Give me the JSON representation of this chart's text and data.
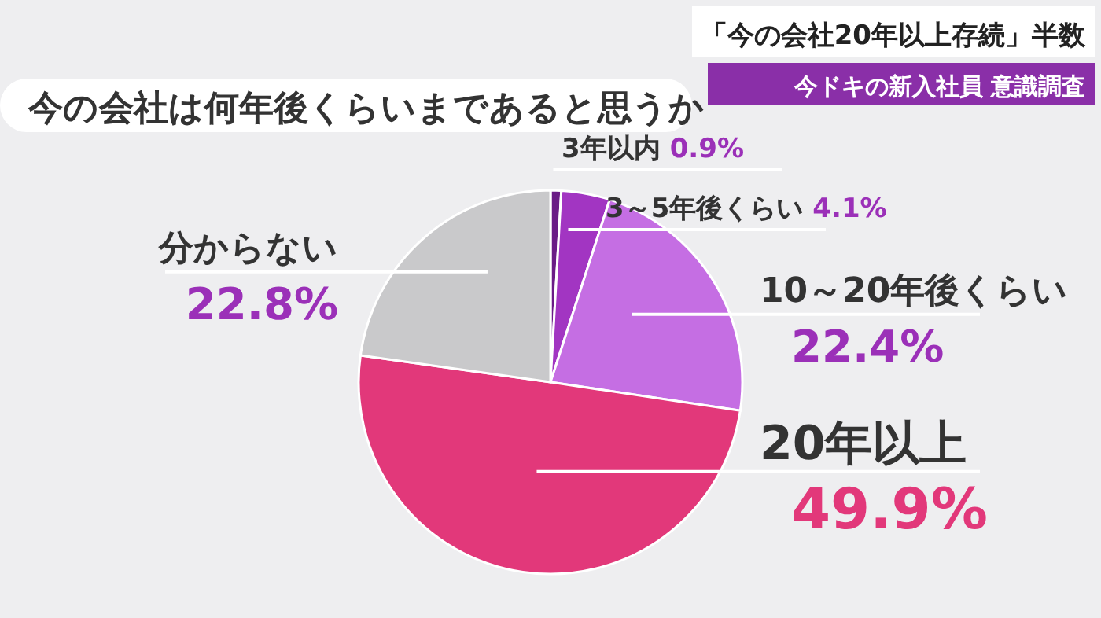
{
  "chart_data": {
    "type": "pie",
    "title": "今の会社は何年後くらいまであると思うか",
    "subtitle": "「今の会社20年以上存続」半数",
    "annotations": [
      "今ドキの新入社員 意識調査"
    ],
    "categories": [
      "3年以内",
      "3～5年後くらい",
      "10～20年後くらい",
      "20年以上",
      "分からない"
    ],
    "values": [
      0.9,
      4.1,
      22.4,
      49.9,
      22.8
    ],
    "colors": [
      "#6a1b86",
      "#a235c2",
      "#c56ee3",
      "#e2387a",
      "#c9c9cb"
    ],
    "value_labels": [
      "0.9%",
      "4.1%",
      "22.4%",
      "49.9%",
      "22.8%"
    ]
  }
}
